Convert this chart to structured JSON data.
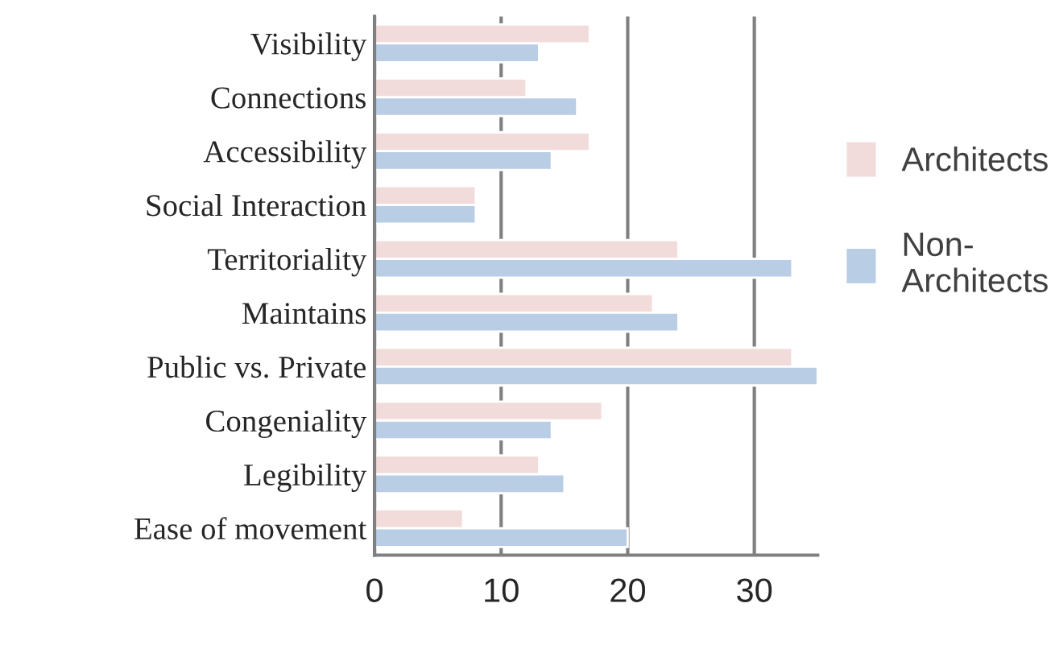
{
  "chart_data": {
    "type": "bar",
    "orientation": "horizontal",
    "categories": [
      "Visibility",
      "Connections",
      "Accessibility",
      "Social Interaction",
      "Territoriality",
      "Maintains",
      "Public vs. Private",
      "Congeniality",
      "Legibility",
      "Ease of movement"
    ],
    "series": [
      {
        "name": "Architects",
        "color": "#f2dcdb",
        "values": [
          17,
          12,
          17,
          8,
          24,
          22,
          33,
          18,
          13,
          7
        ]
      },
      {
        "name": "Non-Architects",
        "color": "#b9cde5",
        "values": [
          13,
          16,
          14,
          8,
          33,
          24,
          35,
          14,
          15,
          20
        ]
      }
    ],
    "xlim": [
      0,
      35
    ],
    "xticks": [
      0,
      10,
      20,
      30
    ],
    "grid": "x",
    "legend": "right"
  }
}
